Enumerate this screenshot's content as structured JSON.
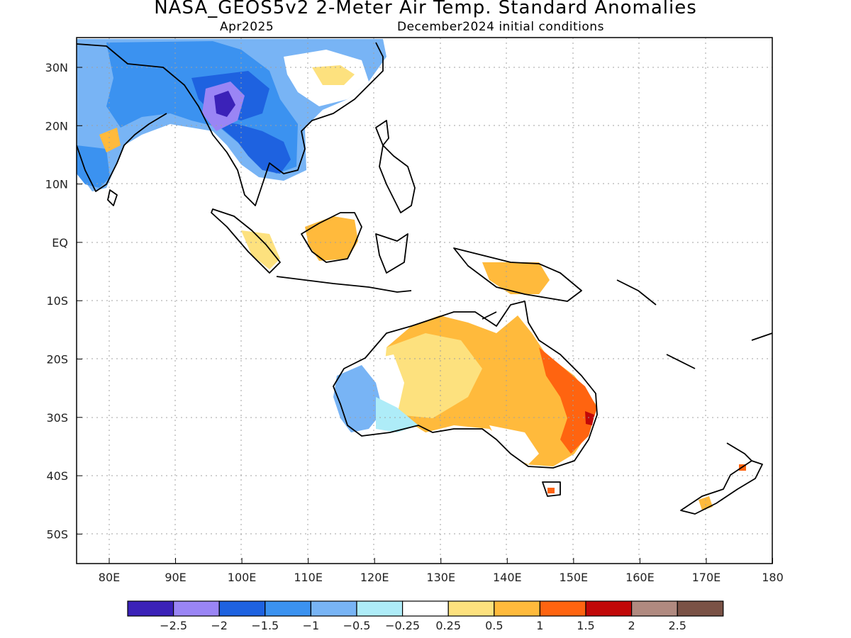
{
  "title": "NASA_GEOS5v2 2-Meter Air Temp. Standard Anomalies",
  "subtitle_left": "Apr2025",
  "subtitle_right": "December2024 initial conditions",
  "map": {
    "lon_range": [
      75,
      180
    ],
    "lat_range": [
      -55,
      35
    ],
    "lat_ticks": [
      "30N",
      "20N",
      "10N",
      "EQ",
      "10S",
      "20S",
      "30S",
      "40S",
      "50S"
    ],
    "lon_ticks": [
      "80E",
      "90E",
      "100E",
      "110E",
      "120E",
      "130E",
      "140E",
      "150E",
      "160E",
      "170E",
      "180"
    ]
  },
  "colorbar": {
    "colors": [
      "#3b22b8",
      "#9a85f5",
      "#1e62e0",
      "#3b92f0",
      "#78b4f5",
      "#aeecf8",
      "#ffffff",
      "#fde17e",
      "#ffba3c",
      "#ff6410",
      "#c10808",
      "#b08a80",
      "#7a5246"
    ],
    "labels": [
      "-2.5",
      "-2",
      "-1.5",
      "-1",
      "-0.5",
      "-0.25",
      "0.25",
      "0.5",
      "1",
      "1.5",
      "2",
      "2.5"
    ]
  },
  "palette": {
    "blue_dark": "#1e62e0",
    "blue_mid": "#3b92f0",
    "blue_light": "#78b4f5",
    "cyan": "#aeecf8",
    "yellow": "#fde17e",
    "orange": "#ffba3c",
    "red_orange": "#ff6410",
    "red": "#c10808",
    "purple": "#9a85f5",
    "purple_dark": "#3b22b8"
  }
}
